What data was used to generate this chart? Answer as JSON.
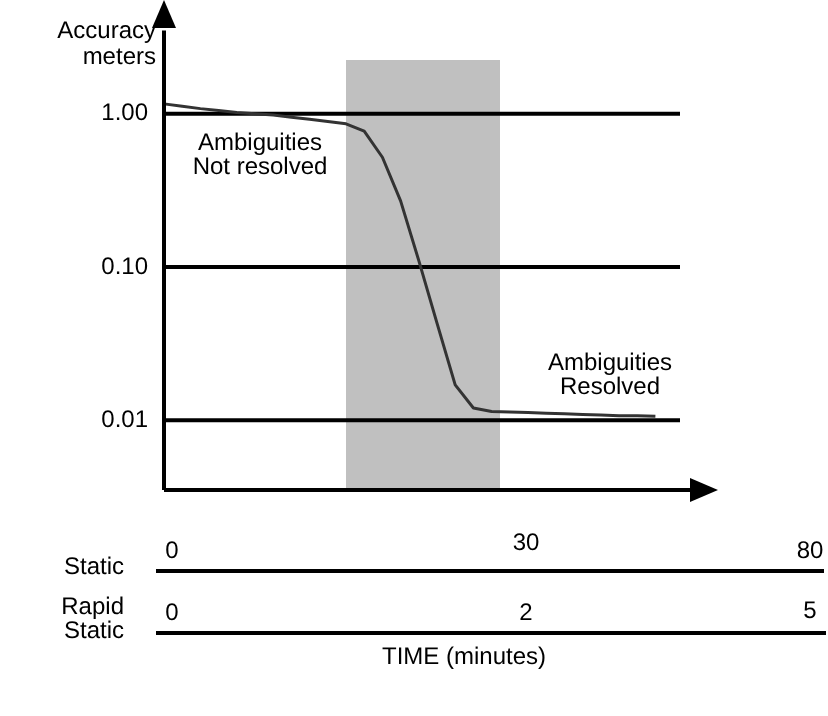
{
  "chart_data": {
    "type": "line",
    "ylabel": "Accuracy\nmeters",
    "categories": [
      null,
      null,
      null,
      null,
      null,
      null,
      null,
      null,
      null,
      null,
      null,
      null,
      null,
      null,
      null,
      null,
      null,
      null,
      null,
      null,
      null,
      null,
      null,
      null,
      null,
      null,
      null,
      null,
      null,
      null,
      null
    ],
    "series": [
      {
        "color": "#333333",
        "values": [
          1.16,
          1.12,
          1.08,
          1.05,
          1.02,
          1.0,
          0.98,
          0.95,
          0.92,
          0.89,
          0.86,
          0.77,
          0.52,
          0.27,
          0.11,
          0.043,
          0.017,
          0.012,
          0.0114,
          0.0113,
          0.0112,
          0.0111,
          0.011,
          0.0109,
          0.0108,
          0.0107,
          0.0107,
          0.0106,
          null,
          null,
          null
        ]
      }
    ],
    "log": true,
    "ylim": [
      0.0035,
      3.5
    ],
    "yticks": [
      {
        "value": 0.01,
        "label": "0.01"
      },
      {
        "value": 0.1,
        "label": "0.10"
      },
      {
        "value": 1,
        "label": "1.00"
      }
    ],
    "grid": "y",
    "legend": false,
    "marker": "none",
    "tick_labels": "y",
    "annotations": [
      "Ambiguities\nNot resolved",
      "Ambiguities\nResolved",
      "Static",
      "0",
      "30",
      "80",
      "Rapid\nStatic",
      "0",
      "2",
      "5",
      "TIME (minutes)"
    ]
  }
}
